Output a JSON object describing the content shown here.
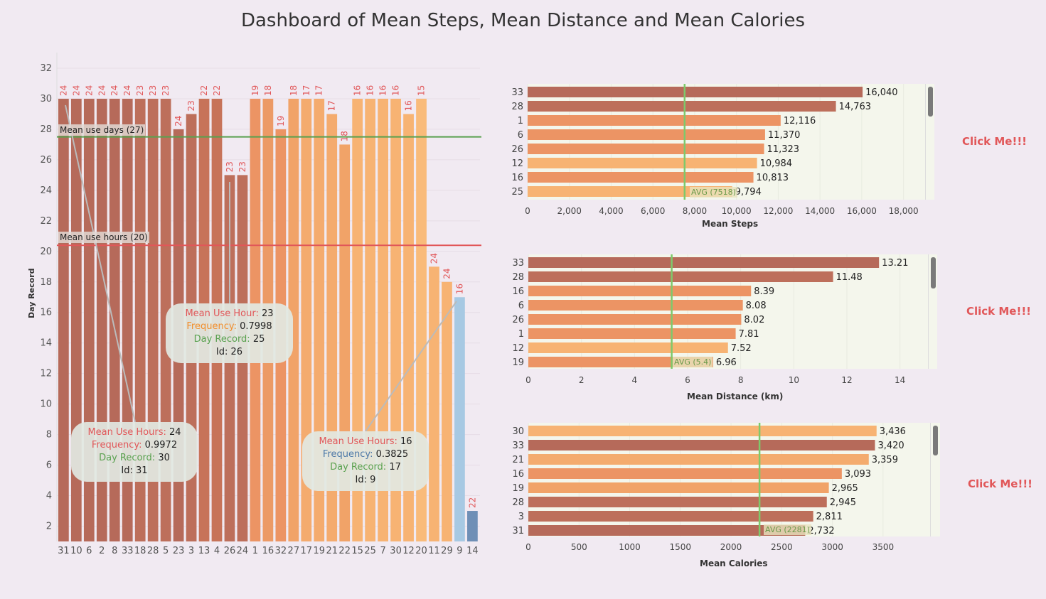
{
  "title": "Dashboard of Mean Steps, Mean Distance and Mean Calories",
  "colors": {
    "accent_red": "#e15759",
    "accent_green": "#59a14f",
    "avg_line": "#7dc96b",
    "label_red": "#e15759"
  },
  "click_label": "Click Me!!!",
  "chart_data": [
    {
      "type": "bar",
      "ylabel": "Day Record",
      "ylim": [
        1,
        32
      ],
      "yticks": [
        2,
        4,
        6,
        8,
        10,
        12,
        14,
        16,
        18,
        20,
        22,
        24,
        26,
        28,
        30,
        32
      ],
      "categories": [
        "31",
        "10",
        "6",
        "2",
        "8",
        "33",
        "18",
        "28",
        "5",
        "23",
        "3",
        "13",
        "4",
        "26",
        "24",
        "1",
        "16",
        "32",
        "27",
        "17",
        "19",
        "21",
        "22",
        "15",
        "25",
        "7",
        "30",
        "12",
        "20",
        "11",
        "29",
        "9",
        "14"
      ],
      "values": [
        30,
        30,
        30,
        30,
        30,
        30,
        30,
        30,
        30,
        28,
        29,
        30,
        30,
        25,
        25,
        30,
        30,
        28,
        30,
        30,
        30,
        29,
        27,
        30,
        30,
        30,
        30,
        29,
        30,
        19,
        18,
        17,
        3
      ],
      "labels": [
        24,
        24,
        24,
        24,
        24,
        24,
        23,
        23,
        23,
        24,
        23,
        22,
        22,
        23,
        23,
        19,
        18,
        19,
        18,
        17,
        17,
        17,
        18,
        16,
        16,
        16,
        16,
        16,
        15,
        24,
        24,
        16,
        22
      ],
      "colors": [
        "#b66a5a",
        "#b66a5a",
        "#b66a5a",
        "#b66a5a",
        "#b66a5a",
        "#b66a5a",
        "#bd6f5b",
        "#bd6f5b",
        "#bd6f5b",
        "#b66a5a",
        "#bd6f5b",
        "#c77359",
        "#c77359",
        "#bd6f5b",
        "#bd6f5b",
        "#ec9464",
        "#ec9a66",
        "#ec9464",
        "#f1a368",
        "#f4ab6e",
        "#f4ab6e",
        "#f4ab6e",
        "#f1a368",
        "#f7b373",
        "#f7b373",
        "#f7b373",
        "#f7b373",
        "#f7b373",
        "#f9bb7a",
        "#f7b373",
        "#f7b373",
        "#a7c9e3",
        "#6f8fb6"
      ],
      "reference_lines": [
        {
          "label": "Mean use days (27)",
          "value": 27.5,
          "color": "#59a14f"
        },
        {
          "label": "Mean use hours (20)",
          "value": 20.4,
          "color": "#e15759"
        }
      ],
      "annotations": [
        {
          "mean_label": "Mean Use Hours:",
          "mean": "24",
          "freq_label": "Frequency:",
          "freq": "0.9972",
          "day_label": "Day Record:",
          "day": "30",
          "id_label": "Id:",
          "id": "31"
        },
        {
          "mean_label": "Mean Use Hour:",
          "mean": "23",
          "freq_label": "Frequency:",
          "freq": "0.7998",
          "day_label": "Day Record:",
          "day": "25",
          "id_label": "Id:",
          "id": "26"
        },
        {
          "mean_label": "Mean Use Hours:",
          "mean": "16",
          "freq_label": "Frequency:",
          "freq": "0.3825",
          "day_label": "Day Record:",
          "day": "17",
          "id_label": "Id:",
          "id": "9"
        }
      ]
    },
    {
      "type": "bar",
      "orientation": "horizontal",
      "xlabel": "Mean Steps",
      "xlim": [
        0,
        19000
      ],
      "xticks": [
        "0",
        "2,000",
        "4,000",
        "6,000",
        "8,000",
        "10,000",
        "12,000",
        "14,000",
        "16,000",
        "18,000"
      ],
      "categories": [
        "33",
        "28",
        "1",
        "6",
        "26",
        "12",
        "16",
        "25"
      ],
      "values": [
        16040,
        14763,
        12116,
        11370,
        11323,
        10984,
        10813,
        9794
      ],
      "value_labels": [
        "16,040",
        "14,763",
        "12,116",
        "11,370",
        "11,323",
        "10,984",
        "10,813",
        "9,794"
      ],
      "colors": [
        "#b66a5a",
        "#bd6f5b",
        "#ec9464",
        "#ec9464",
        "#ec9464",
        "#f7b373",
        "#ec9464",
        "#f7b373"
      ],
      "avg": 7518,
      "avg_label": "AVG (7518)"
    },
    {
      "type": "bar",
      "orientation": "horizontal",
      "xlabel": "Mean Distance (km)",
      "xlim": [
        0,
        15
      ],
      "xticks": [
        "0",
        "2",
        "4",
        "6",
        "8",
        "10",
        "12",
        "14"
      ],
      "categories": [
        "33",
        "28",
        "16",
        "6",
        "26",
        "1",
        "12",
        "19"
      ],
      "values": [
        13.21,
        11.48,
        8.39,
        8.08,
        8.02,
        7.81,
        7.52,
        6.96
      ],
      "value_labels": [
        "13.21",
        "11.48",
        "8.39",
        "8.08",
        "8.02",
        "7.81",
        "7.52",
        "6.96"
      ],
      "colors": [
        "#b66a5a",
        "#bd6f5b",
        "#ec9464",
        "#ec9464",
        "#ec9464",
        "#ec9464",
        "#f7b373",
        "#ec9464"
      ],
      "avg": 5.4,
      "avg_label": "AVG (5.4)"
    },
    {
      "type": "bar",
      "orientation": "horizontal",
      "xlabel": "Mean Calories",
      "xlim": [
        0,
        3950
      ],
      "xticks": [
        "0",
        "500",
        "1000",
        "1500",
        "2000",
        "2500",
        "3000",
        "3500"
      ],
      "categories": [
        "30",
        "33",
        "21",
        "16",
        "19",
        "28",
        "3",
        "31"
      ],
      "values": [
        3436,
        3420,
        3359,
        3093,
        2965,
        2945,
        2811,
        2732
      ],
      "value_labels": [
        "3,436",
        "3,420",
        "3,359",
        "3,093",
        "2,965",
        "2,945",
        "2,811",
        "2,732"
      ],
      "colors": [
        "#f7b373",
        "#b66a5a",
        "#f4ab6e",
        "#ec9464",
        "#f1a368",
        "#bd6f5b",
        "#bd6f5b",
        "#b66a5a"
      ],
      "avg": 2281,
      "avg_label": "AVG (2281)"
    }
  ]
}
